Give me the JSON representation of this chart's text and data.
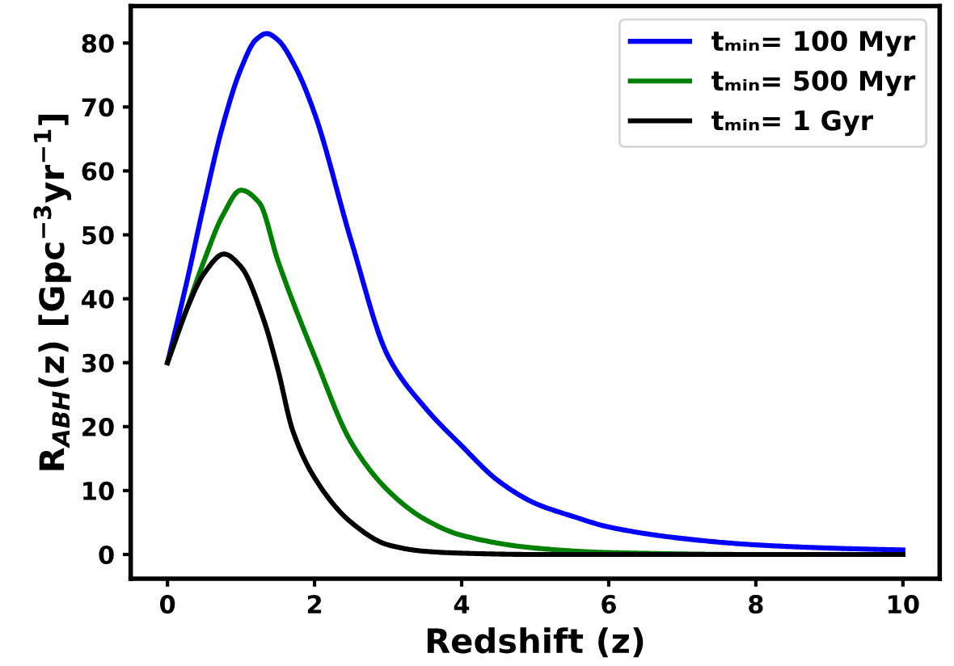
{
  "chart_data": {
    "type": "line",
    "xlabel": "Redshift (z)",
    "ylabel": "R$_{ABH}$(z) [Gpc$^{−3}$yr$^{−1}$]",
    "xlim": [
      -0.5,
      10.5
    ],
    "xticks": [
      0,
      2,
      4,
      6,
      8,
      10
    ],
    "ylim": [
      -3.8,
      85.8
    ],
    "yticks": [
      0,
      10,
      20,
      30,
      40,
      50,
      60,
      70,
      80
    ],
    "grid": false,
    "legend": "top right",
    "marker": "none",
    "line_style": "solid",
    "series": [
      {
        "name": "tₘᵢₙ= 100 Myr",
        "color": "#0000ff",
        "x": [
          0,
          0.25,
          0.5,
          0.75,
          1.0,
          1.2,
          1.35,
          1.5,
          1.75,
          2.0,
          2.5,
          3.0,
          3.5,
          4.0,
          4.5,
          5.0,
          5.5,
          6.0,
          7.0,
          8.0,
          9.0,
          10.0
        ],
        "values": [
          30,
          42,
          55,
          67,
          76,
          80.5,
          81.5,
          80.5,
          76,
          69,
          49,
          31,
          23,
          17,
          11.5,
          8,
          6,
          4.3,
          2.5,
          1.5,
          1,
          0.7
        ]
      },
      {
        "name": "tₘᵢₙ= 500 Myr",
        "color": "#008000",
        "x": [
          0,
          0.25,
          0.5,
          0.75,
          1.0,
          1.25,
          1.5,
          2.0,
          2.5,
          3.0,
          3.5,
          4.0,
          5.0,
          6.0,
          8.0,
          10.0
        ],
        "values": [
          30,
          38,
          46,
          53,
          57,
          55,
          46,
          31,
          17.5,
          10,
          5.5,
          3,
          1,
          0.3,
          0,
          0
        ]
      },
      {
        "name": "tₘᵢₙ= 1 Gyr",
        "color": "#000000",
        "x": [
          0,
          0.25,
          0.5,
          0.77,
          1.0,
          1.3,
          1.5,
          1.7,
          2.0,
          2.5,
          3.0,
          3.5,
          4.0,
          5.0,
          10.0
        ],
        "values": [
          30,
          38,
          44,
          47,
          45,
          37,
          29,
          19.5,
          12,
          5,
          1.5,
          0.5,
          0.2,
          0,
          0
        ]
      }
    ]
  }
}
